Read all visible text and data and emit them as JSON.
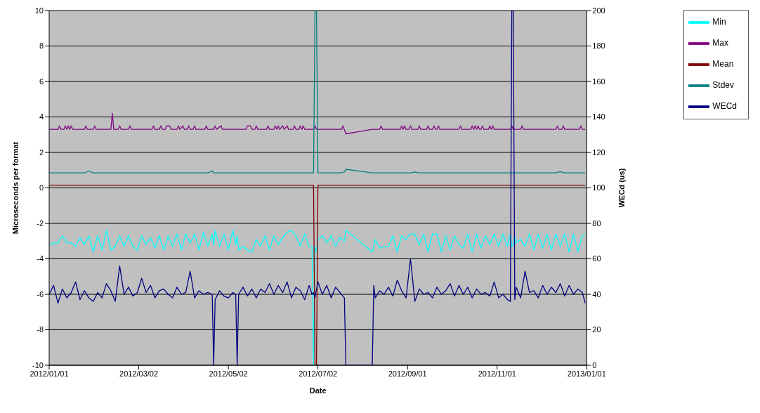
{
  "chart_data": {
    "type": "line",
    "xlabel": "Date",
    "ylabel": "Microseconds per format",
    "y2label": "WECd (us)",
    "xlim": [
      "2012-01-01",
      "2013-01-01"
    ],
    "xticks": [
      {
        "value": "2012-01-01",
        "label": "2012/01/01"
      },
      {
        "value": "2012-03-02",
        "label": "2012/03/02"
      },
      {
        "value": "2012-05-02",
        "label": "2012/05/02"
      },
      {
        "value": "2012-07-02",
        "label": "2012/07/02"
      },
      {
        "value": "2012-09-01",
        "label": "2012/09/01"
      },
      {
        "value": "2012-11-01",
        "label": "2012/11/01"
      },
      {
        "value": "2013-01-01",
        "label": "2013/01/01"
      }
    ],
    "ylim": [
      -10,
      10
    ],
    "yticks": [
      -10,
      -8,
      -6,
      -4,
      -2,
      0,
      2,
      4,
      6,
      8,
      10
    ],
    "y2lim": [
      0,
      200
    ],
    "y2ticks": [
      0,
      20,
      40,
      60,
      80,
      100,
      120,
      140,
      160,
      180,
      200
    ],
    "grid": "y",
    "legend": "top right",
    "marker": "none",
    "line_style": "solid",
    "x": [
      "2012-01-01",
      "2012-01-04",
      "2012-01-07",
      "2012-01-10",
      "2012-01-13",
      "2012-01-16",
      "2012-01-19",
      "2012-01-22",
      "2012-01-25",
      "2012-01-28",
      "2012-01-31",
      "2012-02-03",
      "2012-02-06",
      "2012-02-09",
      "2012-02-12",
      "2012-02-15",
      "2012-02-18",
      "2012-02-21",
      "2012-02-24",
      "2012-02-27",
      "2012-03-01",
      "2012-03-04",
      "2012-03-07",
      "2012-03-10",
      "2012-03-13",
      "2012-03-16",
      "2012-03-19",
      "2012-03-22",
      "2012-03-25",
      "2012-03-28",
      "2012-03-31",
      "2012-04-03",
      "2012-04-06",
      "2012-04-09",
      "2012-04-12",
      "2012-04-15",
      "2012-04-18",
      "2012-04-21",
      "2012-04-22",
      "2012-04-23",
      "2012-04-26",
      "2012-04-29",
      "2012-05-02",
      "2012-05-05",
      "2012-05-07",
      "2012-05-08",
      "2012-05-09",
      "2012-05-12",
      "2012-05-15",
      "2012-05-18",
      "2012-05-21",
      "2012-05-24",
      "2012-05-27",
      "2012-05-30",
      "2012-06-02",
      "2012-06-05",
      "2012-06-08",
      "2012-06-11",
      "2012-06-14",
      "2012-06-17",
      "2012-06-20",
      "2012-06-23",
      "2012-06-26",
      "2012-06-28",
      "2012-06-29",
      "2012-06-30",
      "2012-07-01",
      "2012-07-02",
      "2012-07-05",
      "2012-07-08",
      "2012-07-11",
      "2012-07-14",
      "2012-07-17",
      "2012-07-20",
      "2012-07-21",
      "2012-08-08",
      "2012-08-09",
      "2012-08-10",
      "2012-08-13",
      "2012-08-16",
      "2012-08-19",
      "2012-08-22",
      "2012-08-25",
      "2012-08-28",
      "2012-08-31",
      "2012-09-03",
      "2012-09-06",
      "2012-09-09",
      "2012-09-12",
      "2012-09-15",
      "2012-09-18",
      "2012-09-21",
      "2012-09-24",
      "2012-09-27",
      "2012-09-30",
      "2012-10-03",
      "2012-10-06",
      "2012-10-09",
      "2012-10-12",
      "2012-10-15",
      "2012-10-18",
      "2012-10-21",
      "2012-10-24",
      "2012-10-27",
      "2012-10-30",
      "2012-11-02",
      "2012-11-05",
      "2012-11-08",
      "2012-11-10",
      "2012-11-11",
      "2012-11-12",
      "2012-11-13",
      "2012-11-14",
      "2012-11-17",
      "2012-11-20",
      "2012-11-23",
      "2012-11-26",
      "2012-11-29",
      "2012-12-02",
      "2012-12-05",
      "2012-12-08",
      "2012-12-11",
      "2012-12-14",
      "2012-12-17",
      "2012-12-20",
      "2012-12-23",
      "2012-12-26",
      "2012-12-29",
      "2012-12-31"
    ],
    "series": [
      {
        "name": "Min",
        "color": "#00ffff",
        "values": [
          -3.2,
          -3.1,
          -3.1,
          -2.7,
          -3.1,
          -3.1,
          -3.3,
          -2.8,
          -3.2,
          -2.7,
          -3.6,
          -2.7,
          -3.5,
          -2.4,
          -3.5,
          -3.3,
          -2.7,
          -3.3,
          -2.7,
          -3.3,
          -3.5,
          -2.7,
          -3.2,
          -2.8,
          -3.4,
          -2.7,
          -3.5,
          -2.7,
          -3.3,
          -2.6,
          -3.5,
          -2.6,
          -3.1,
          -2.6,
          -3.5,
          -2.5,
          -3.3,
          -2.6,
          -3.2,
          -2.4,
          -3.3,
          -2.6,
          -3.5,
          -2.4,
          -3.2,
          -2.7,
          -3.5,
          -3.3,
          -3.5,
          -3.6,
          -2.9,
          -3.3,
          -2.7,
          -3.5,
          -2.7,
          -3.2,
          -2.8,
          -2.5,
          -2.4,
          -2.7,
          -3.3,
          -2.6,
          -3.3,
          -3.3,
          -10,
          -3.3,
          -3.6,
          -2.9,
          -2.7,
          -3.1,
          -2.7,
          -3.3,
          -2.8,
          -3.0,
          -2.4,
          -3.6,
          -3.3,
          -2.9,
          -3.4,
          -3.3,
          -3.3,
          -2.7,
          -3.6,
          -2.7,
          -2.9,
          -2.6,
          -2.6,
          -3.2,
          -2.6,
          -3.6,
          -2.6,
          -2.6,
          -3.6,
          -2.7,
          -3.5,
          -2.7,
          -3.2,
          -3.4,
          -2.6,
          -3.6,
          -2.6,
          -3.4,
          -2.7,
          -3.2,
          -2.6,
          -3.3,
          -2.6,
          -3.3,
          -2.6,
          -3.3,
          -3.2,
          -2.7,
          -3.1,
          -2.9,
          -3.3,
          -2.6,
          -3.5,
          -2.6,
          -3.4,
          -2.6,
          -3.5,
          -2.6,
          -3.3,
          -2.6,
          -3.6,
          -2.6,
          -3.6,
          -2.7,
          -2.6
        ]
      },
      {
        "name": "Max",
        "color": "#800080",
        "x": [
          "2012-01-01",
          "2012-01-07",
          "2012-01-08",
          "2012-01-09",
          "2012-01-11",
          "2012-01-12",
          "2012-01-13",
          "2012-01-14",
          "2012-01-15",
          "2012-01-16",
          "2012-01-17",
          "2012-01-25",
          "2012-01-26",
          "2012-01-27",
          "2012-01-31",
          "2012-02-01",
          "2012-02-02",
          "2012-02-12",
          "2012-02-13",
          "2012-02-14",
          "2012-02-17",
          "2012-02-18",
          "2012-02-19",
          "2012-02-24",
          "2012-02-25",
          "2012-02-26",
          "2012-03-11",
          "2012-03-12",
          "2012-03-13",
          "2012-03-16",
          "2012-03-17",
          "2012-03-18",
          "2012-03-20",
          "2012-03-21",
          "2012-03-23",
          "2012-03-24",
          "2012-03-28",
          "2012-03-29",
          "2012-03-30",
          "2012-04-01",
          "2012-04-02",
          "2012-04-04",
          "2012-04-05",
          "2012-04-06",
          "2012-04-08",
          "2012-04-09",
          "2012-04-10",
          "2012-04-16",
          "2012-04-17",
          "2012-04-18",
          "2012-04-22",
          "2012-04-23",
          "2012-04-24",
          "2012-04-27",
          "2012-04-28",
          "2012-05-14",
          "2012-05-15",
          "2012-05-17",
          "2012-05-18",
          "2012-05-20",
          "2012-05-21",
          "2012-05-22",
          "2012-05-28",
          "2012-05-29",
          "2012-05-30",
          "2012-06-02",
          "2012-06-03",
          "2012-06-04",
          "2012-06-05",
          "2012-06-06",
          "2012-06-08",
          "2012-06-09",
          "2012-06-11",
          "2012-06-12",
          "2012-06-15",
          "2012-06-16",
          "2012-06-17",
          "2012-06-19",
          "2012-06-20",
          "2012-06-21",
          "2012-06-22",
          "2012-06-23",
          "2012-06-29",
          "2012-06-30",
          "2012-07-01",
          "2012-07-18",
          "2012-07-19",
          "2012-07-21",
          "2012-08-08",
          "2012-08-13",
          "2012-08-14",
          "2012-08-15",
          "2012-08-27",
          "2012-08-28",
          "2012-08-29",
          "2012-08-30",
          "2012-08-31",
          "2012-09-02",
          "2012-09-03",
          "2012-09-04",
          "2012-09-08",
          "2012-09-09",
          "2012-09-10",
          "2012-09-14",
          "2012-09-15",
          "2012-09-16",
          "2012-09-18",
          "2012-09-19",
          "2012-09-20",
          "2012-09-21",
          "2012-09-22",
          "2012-09-23",
          "2012-10-06",
          "2012-10-07",
          "2012-10-08",
          "2012-10-14",
          "2012-10-15",
          "2012-10-16",
          "2012-10-17",
          "2012-10-18",
          "2012-10-19",
          "2012-10-20",
          "2012-10-21",
          "2012-10-22",
          "2012-10-23",
          "2012-10-26",
          "2012-10-27",
          "2012-10-28",
          "2012-10-29",
          "2012-10-30",
          "2012-11-10",
          "2012-11-11",
          "2012-11-12",
          "2012-11-17",
          "2012-11-18",
          "2012-11-19",
          "2012-12-11",
          "2012-12-12",
          "2012-12-13",
          "2012-12-15",
          "2012-12-16",
          "2012-12-17",
          "2012-12-27",
          "2012-12-28",
          "2012-12-29",
          "2012-12-31"
        ],
        "values": [
          3.3,
          3.3,
          3.5,
          3.3,
          3.3,
          3.5,
          3.3,
          3.5,
          3.3,
          3.5,
          3.3,
          3.3,
          3.5,
          3.3,
          3.3,
          3.5,
          3.3,
          3.3,
          4.2,
          3.3,
          3.3,
          3.5,
          3.3,
          3.3,
          3.5,
          3.3,
          3.3,
          3.5,
          3.3,
          3.3,
          3.5,
          3.3,
          3.3,
          3.5,
          3.5,
          3.3,
          3.3,
          3.5,
          3.3,
          3.5,
          3.3,
          3.3,
          3.5,
          3.3,
          3.3,
          3.5,
          3.3,
          3.3,
          3.5,
          3.3,
          3.3,
          3.5,
          3.3,
          3.5,
          3.3,
          3.3,
          3.5,
          3.5,
          3.3,
          3.3,
          3.5,
          3.3,
          3.3,
          3.5,
          3.3,
          3.3,
          3.5,
          3.3,
          3.5,
          3.3,
          3.5,
          3.3,
          3.5,
          3.3,
          3.3,
          3.5,
          3.3,
          3.3,
          3.5,
          3.3,
          3.5,
          3.3,
          3.3,
          3.5,
          3.3,
          3.3,
          3.5,
          3.05,
          3.3,
          3.3,
          3.5,
          3.3,
          3.3,
          3.5,
          3.3,
          3.5,
          3.3,
          3.3,
          3.5,
          3.3,
          3.3,
          3.5,
          3.3,
          3.3,
          3.5,
          3.3,
          3.3,
          3.5,
          3.3,
          3.3,
          3.5,
          3.3,
          3.3,
          3.5,
          3.3,
          3.3,
          3.5,
          3.3,
          3.5,
          3.3,
          3.5,
          3.3,
          3.3,
          3.5,
          3.3,
          3.3,
          3.5,
          3.3,
          3.5,
          3.3,
          3.3,
          3.5,
          3.3,
          3.3,
          3.5,
          3.3,
          3.3,
          3.5,
          3.3,
          3.3,
          3.5,
          3.3,
          3.3,
          3.5,
          3.3,
          3.3
        ]
      },
      {
        "name": "Mean",
        "color": "#800000",
        "x": [
          "2012-01-01",
          "2012-06-29",
          "2012-06-30",
          "2012-07-01",
          "2012-07-02",
          "2012-12-31"
        ],
        "values": [
          0.15,
          0.15,
          -10,
          -10,
          0.15,
          0.15
        ]
      },
      {
        "name": "Stdev",
        "color": "#008080",
        "values": [
          0.85,
          0.85,
          0.85,
          0.85,
          0.85,
          0.85,
          0.85,
          0.85,
          0.85,
          0.95,
          0.85,
          0.85,
          0.85,
          0.85,
          0.85,
          0.85,
          0.85,
          0.85,
          0.85,
          0.85,
          0.85,
          0.85,
          0.85,
          0.85,
          0.85,
          0.85,
          0.85,
          0.85,
          0.85,
          0.85,
          0.85,
          0.85,
          0.85,
          0.85,
          0.85,
          0.85,
          0.85,
          0.95,
          0.85,
          0.85,
          0.85,
          0.85,
          0.85,
          0.85,
          0.85,
          0.85,
          0.85,
          0.85,
          0.85,
          0.85,
          0.85,
          0.85,
          0.85,
          0.85,
          0.85,
          0.85,
          0.85,
          0.85,
          0.85,
          0.85,
          0.85,
          0.85,
          0.85,
          0.85,
          0.85,
          10,
          10,
          0.85,
          0.85,
          0.85,
          0.85,
          0.85,
          0.85,
          0.9,
          1.05,
          0.85,
          0.85,
          0.85,
          0.85,
          0.85,
          0.85,
          0.85,
          0.85,
          0.85,
          0.85,
          0.85,
          0.9,
          0.85,
          0.85,
          0.85,
          0.85,
          0.85,
          0.85,
          0.85,
          0.85,
          0.85,
          0.85,
          0.85,
          0.85,
          0.85,
          0.85,
          0.85,
          0.85,
          0.85,
          0.85,
          0.85,
          0.85,
          0.85,
          0.85,
          0.85,
          0.85,
          0.85,
          0.85,
          0.85,
          0.85,
          0.85,
          0.85,
          0.85,
          0.85,
          0.85,
          0.85,
          0.85,
          0.92,
          0.85,
          0.85,
          0.85,
          0.85,
          0.85,
          0.85
        ]
      },
      {
        "name": "WECd",
        "color": "#000080",
        "axis": "y2",
        "values": [
          40,
          45,
          35,
          43,
          38,
          41,
          47,
          37,
          42,
          38,
          36,
          41,
          38,
          46,
          42,
          36,
          56,
          40,
          44,
          39,
          41,
          49,
          41,
          45,
          38,
          42,
          43,
          40,
          38,
          44,
          40,
          41,
          53,
          38,
          42,
          40,
          41,
          40,
          0,
          37,
          42,
          39,
          38,
          41,
          40,
          0,
          40,
          44,
          39,
          43,
          38,
          43,
          41,
          46,
          40,
          45,
          41,
          47,
          38,
          44,
          42,
          37,
          45,
          40,
          41,
          38,
          43,
          47,
          40,
          45,
          38,
          44,
          41,
          38,
          0,
          0,
          45,
          38,
          42,
          40,
          44,
          39,
          48,
          42,
          38,
          60,
          36,
          43,
          40,
          41,
          38,
          44,
          40,
          42,
          46,
          39,
          45,
          40,
          44,
          38,
          43,
          40,
          41,
          39,
          47,
          38,
          40,
          37,
          36,
          200,
          200,
          37,
          44,
          38,
          53,
          41,
          42,
          38,
          45,
          40,
          44,
          41,
          46,
          39,
          45,
          40,
          43,
          41,
          35
        ]
      }
    ]
  }
}
